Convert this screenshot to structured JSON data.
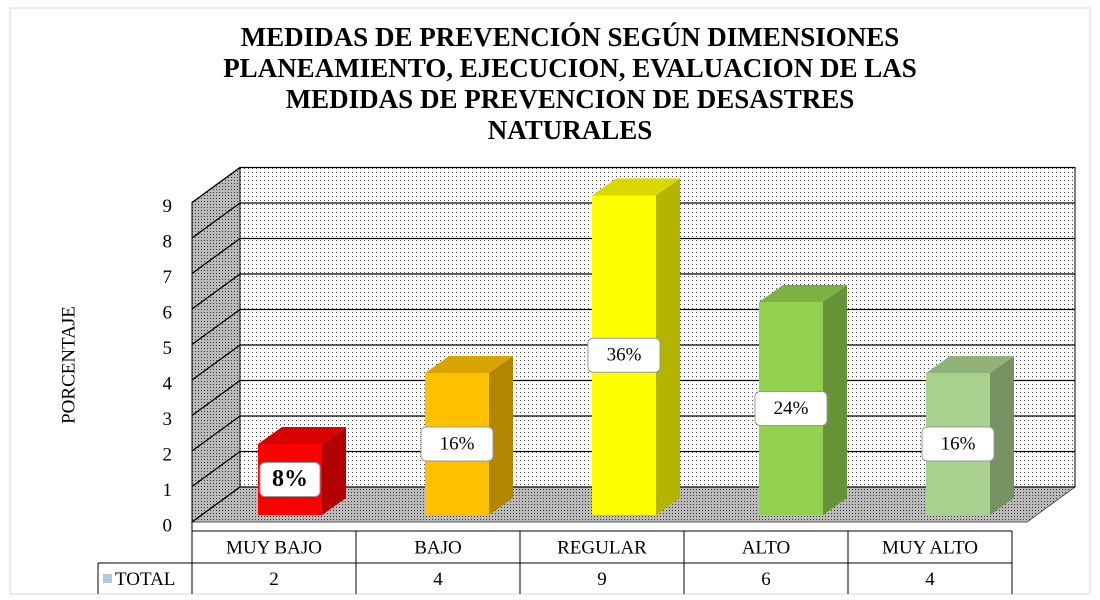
{
  "chart_data": {
    "type": "bar3d",
    "title": [
      "MEDIDAS DE PREVENCIÓN SEGÚN DIMENSIONES",
      "PLANEAMIENTO, EJECUCION, EVALUACION DE LAS",
      "MEDIDAS DE PREVENCION DE DESASTRES",
      "NATURALES"
    ],
    "y_label": "PORCENTAJE",
    "categories": [
      "MUY BAJO",
      "BAJO",
      "REGULAR",
      "ALTO",
      "MUY ALTO"
    ],
    "series": [
      {
        "name": "TOTAL",
        "color": "#b4c7e7",
        "values": [
          2,
          4,
          9,
          6,
          4
        ],
        "value_labels": [
          "8%",
          "16%",
          "36%",
          "24%",
          "16%"
        ],
        "colors": [
          "#ff0000",
          "#ffc000",
          "#ffff00",
          "#92d050",
          "#a9d18e"
        ]
      }
    ],
    "ylim": [
      0,
      9
    ],
    "yticks": [
      0,
      1,
      2,
      3,
      4,
      5,
      6,
      7,
      8,
      9
    ],
    "grid": true,
    "data_table": true
  }
}
